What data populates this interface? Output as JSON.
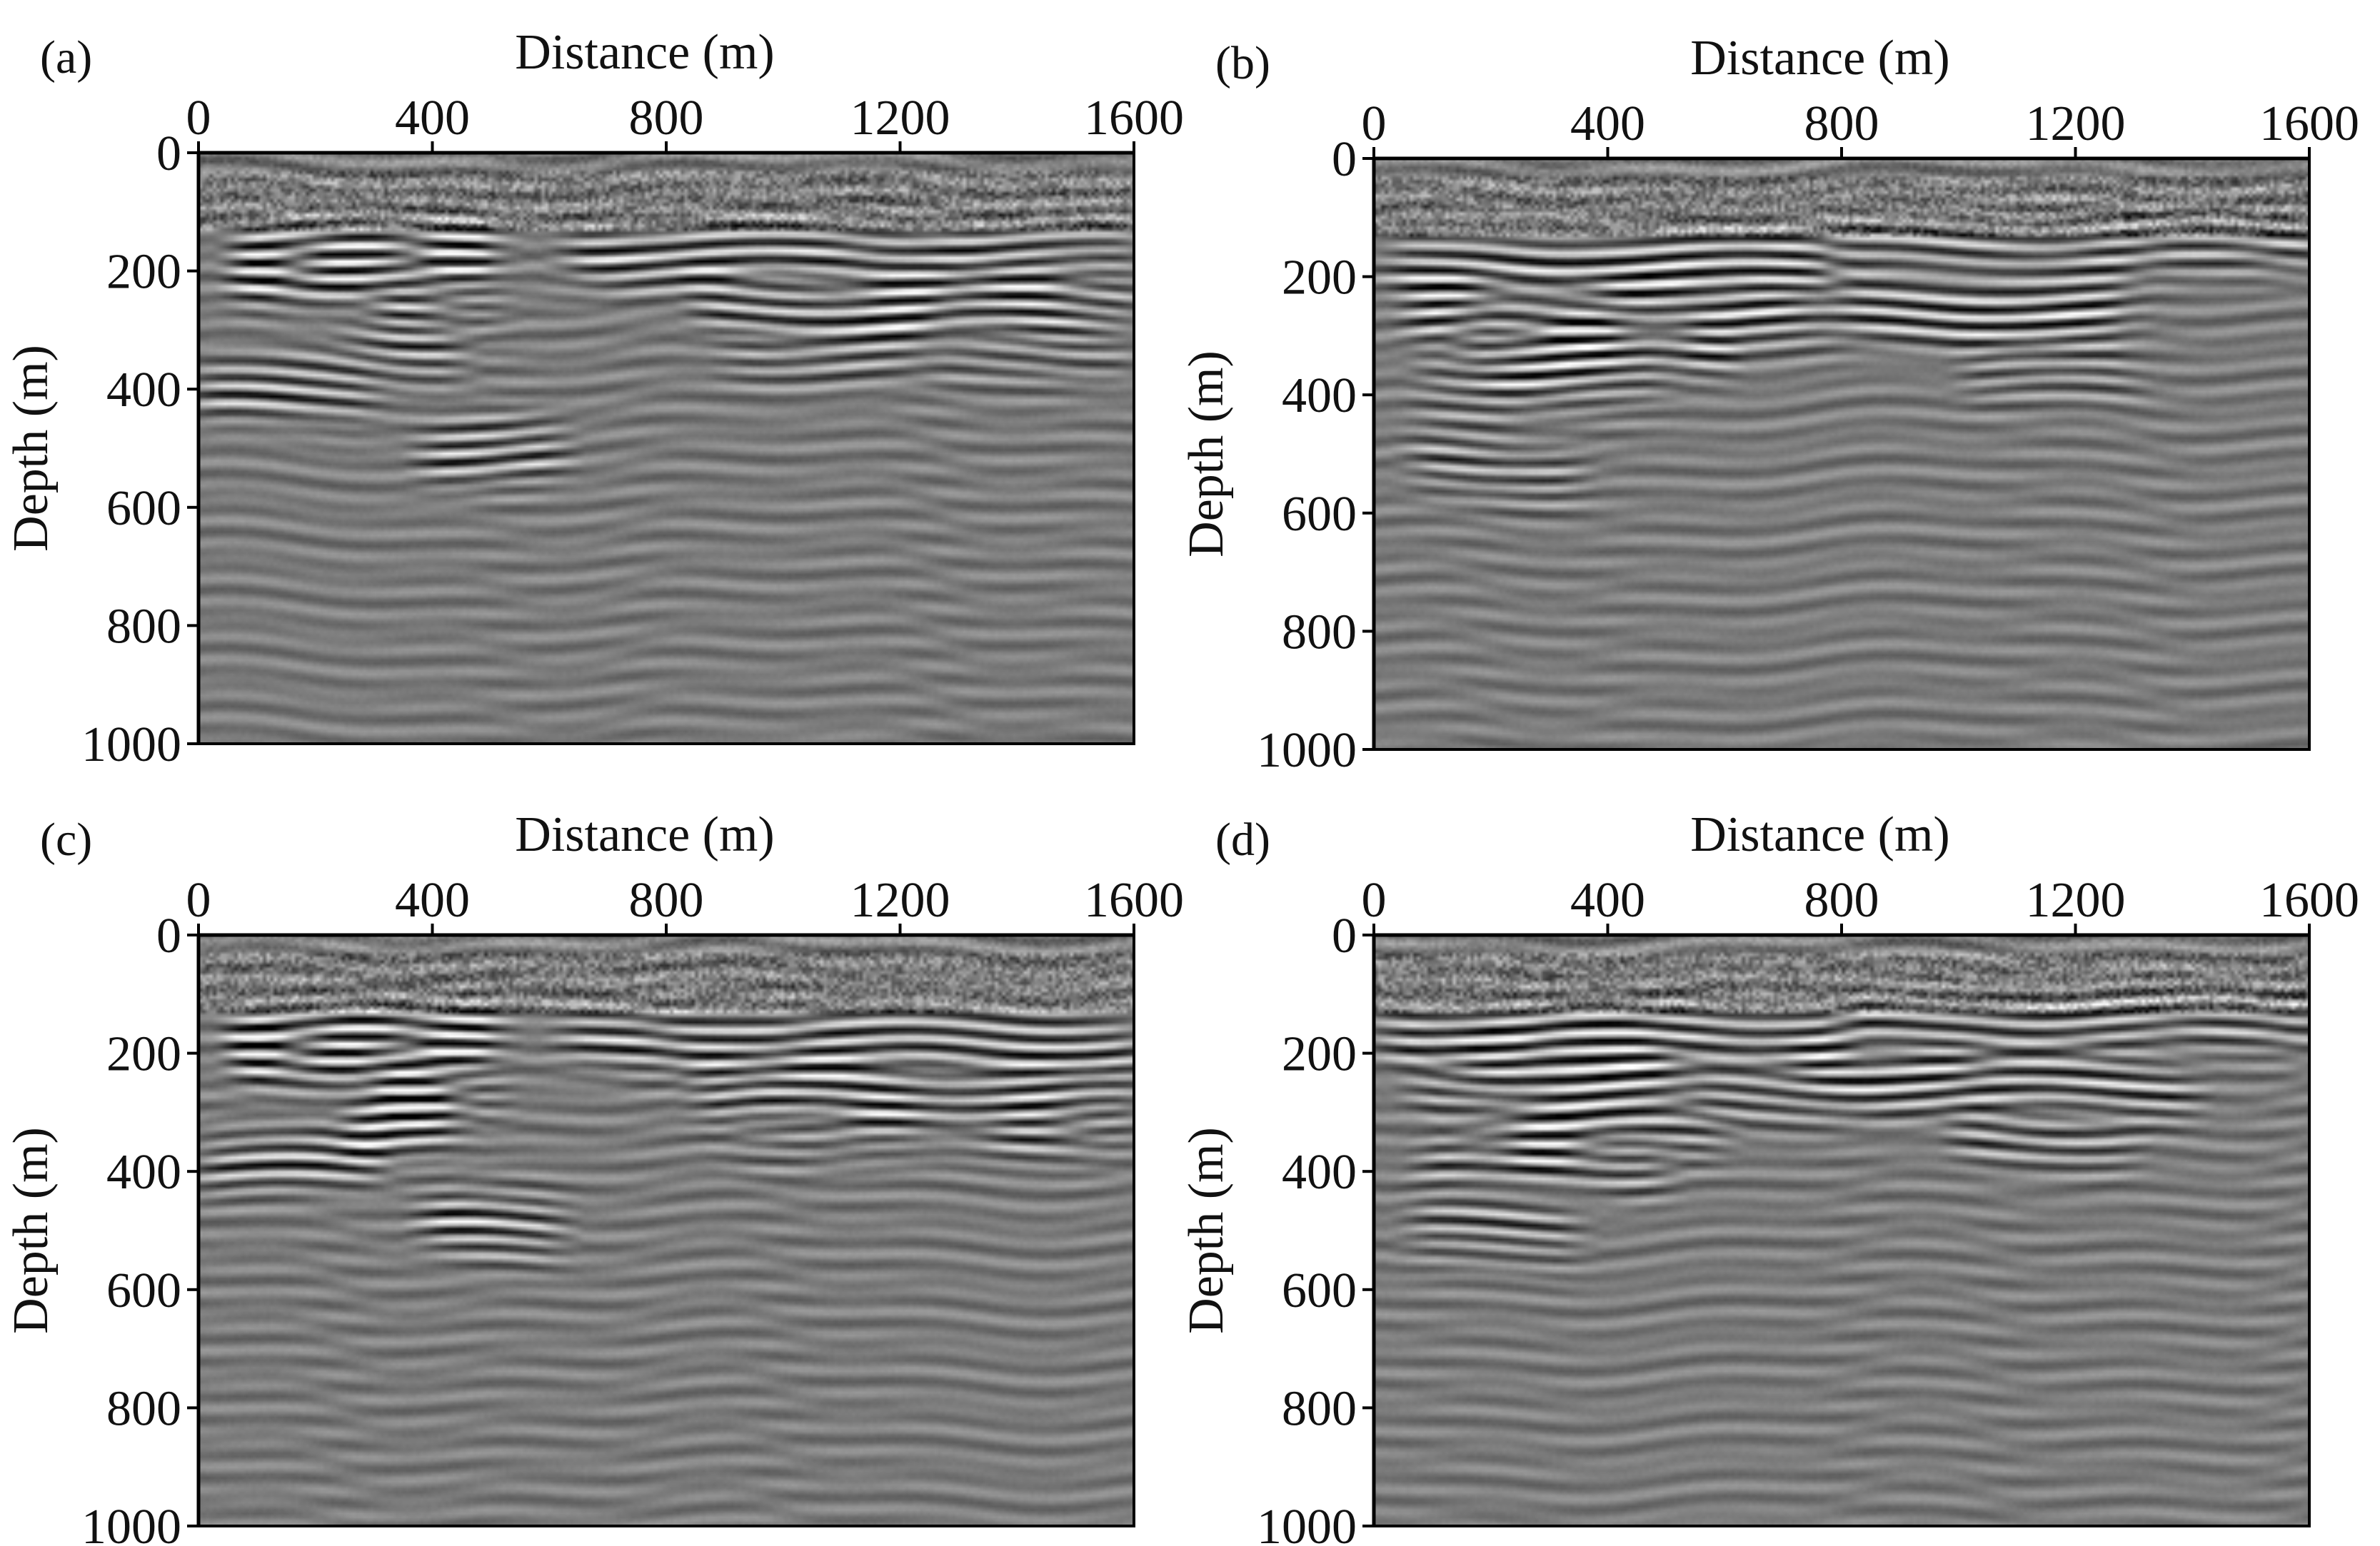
{
  "figure": {
    "description_free": true,
    "colors": {
      "background": "#ffffff",
      "section_mid_gray": "#7b7b7b",
      "peak": "#f4f4f4",
      "trough": "#161616",
      "axis": "#000000"
    }
  },
  "chart_data": [
    {
      "type": "heatmap",
      "panel_label": "(a)",
      "title": "",
      "xlabel": "Distance (m)",
      "ylabel": "Depth (m)",
      "xlim": [
        0,
        1600
      ],
      "ylim": [
        0,
        1000
      ],
      "x_ticks": [
        "0",
        "400",
        "800",
        "1200",
        "1600"
      ],
      "y_ticks": [
        "0",
        "200",
        "400",
        "600",
        "800",
        "1000"
      ],
      "colormap": "gray (seismic amplitude)",
      "reflectors": [
        {
          "x_start": 60,
          "x_end": 520,
          "depth": 165,
          "strength": 1.0
        },
        {
          "x_start": 60,
          "x_end": 520,
          "depth": 200,
          "strength": 0.9
        },
        {
          "x_start": 300,
          "x_end": 520,
          "depth": 260,
          "strength": 0.8
        },
        {
          "x_start": 250,
          "x_end": 450,
          "depth": 330,
          "strength": 0.9
        },
        {
          "x_start": 0,
          "x_end": 300,
          "depth": 400,
          "strength": 0.8
        },
        {
          "x_start": 380,
          "x_end": 620,
          "depth": 500,
          "strength": 0.9
        },
        {
          "x_start": 620,
          "x_end": 1600,
          "depth": 170,
          "strength": 0.85
        },
        {
          "x_start": 850,
          "x_end": 1600,
          "depth": 260,
          "strength": 0.95
        },
        {
          "x_start": 900,
          "x_end": 1600,
          "depth": 330,
          "strength": 0.6
        }
      ]
    },
    {
      "type": "heatmap",
      "panel_label": "(b)",
      "title": "",
      "xlabel": "Distance (m)",
      "ylabel": "Depth (m)",
      "xlim": [
        0,
        1600
      ],
      "ylim": [
        0,
        1000
      ],
      "x_ticks": [
        "0",
        "400",
        "800",
        "1200",
        "1600"
      ],
      "y_ticks": [
        "0",
        "200",
        "400",
        "600",
        "800",
        "1000"
      ],
      "colormap": "gray (seismic amplitude)",
      "reflectors": [
        {
          "x_start": 20,
          "x_end": 800,
          "depth": 180,
          "strength": 0.95
        },
        {
          "x_start": 800,
          "x_end": 1600,
          "depth": 140,
          "strength": 0.7
        },
        {
          "x_start": 60,
          "x_end": 1300,
          "depth": 260,
          "strength": 0.9
        },
        {
          "x_start": 150,
          "x_end": 600,
          "depth": 320,
          "strength": 0.85
        },
        {
          "x_start": 80,
          "x_end": 500,
          "depth": 370,
          "strength": 0.7
        },
        {
          "x_start": 1000,
          "x_end": 1300,
          "depth": 350,
          "strength": 0.6
        },
        {
          "x_start": 60,
          "x_end": 350,
          "depth": 520,
          "strength": 0.7
        }
      ]
    },
    {
      "type": "heatmap",
      "panel_label": "(c)",
      "title": "",
      "xlabel": "Distance (m)",
      "ylabel": "Depth (m)",
      "xlim": [
        0,
        1600
      ],
      "ylim": [
        0,
        1000
      ],
      "x_ticks": [
        "0",
        "400",
        "800",
        "1200",
        "1600"
      ],
      "y_ticks": [
        "0",
        "200",
        "400",
        "600",
        "800",
        "1000"
      ],
      "colormap": "gray (seismic amplitude)",
      "reflectors": [
        {
          "x_start": 60,
          "x_end": 520,
          "depth": 165,
          "strength": 1.0
        },
        {
          "x_start": 60,
          "x_end": 520,
          "depth": 200,
          "strength": 0.9
        },
        {
          "x_start": 300,
          "x_end": 520,
          "depth": 260,
          "strength": 0.85
        },
        {
          "x_start": 250,
          "x_end": 450,
          "depth": 320,
          "strength": 1.0
        },
        {
          "x_start": 0,
          "x_end": 300,
          "depth": 380,
          "strength": 0.85
        },
        {
          "x_start": 380,
          "x_end": 620,
          "depth": 490,
          "strength": 0.95
        },
        {
          "x_start": 620,
          "x_end": 1600,
          "depth": 180,
          "strength": 0.8
        },
        {
          "x_start": 850,
          "x_end": 1600,
          "depth": 270,
          "strength": 0.9
        },
        {
          "x_start": 900,
          "x_end": 1600,
          "depth": 330,
          "strength": 0.5
        }
      ]
    },
    {
      "type": "heatmap",
      "panel_label": "(d)",
      "title": "",
      "xlabel": "Distance (m)",
      "ylabel": "Depth (m)",
      "xlim": [
        0,
        1600
      ],
      "ylim": [
        0,
        1000
      ],
      "x_ticks": [
        "0",
        "400",
        "800",
        "1200",
        "1600"
      ],
      "y_ticks": [
        "0",
        "200",
        "400",
        "600",
        "800",
        "1000"
      ],
      "colormap": "gray (seismic amplitude)",
      "reflectors": [
        {
          "x_start": 20,
          "x_end": 800,
          "depth": 170,
          "strength": 1.0
        },
        {
          "x_start": 800,
          "x_end": 1600,
          "depth": 140,
          "strength": 0.75
        },
        {
          "x_start": 60,
          "x_end": 1400,
          "depth": 250,
          "strength": 0.9
        },
        {
          "x_start": 150,
          "x_end": 600,
          "depth": 320,
          "strength": 0.9
        },
        {
          "x_start": 80,
          "x_end": 500,
          "depth": 380,
          "strength": 0.7
        },
        {
          "x_start": 1000,
          "x_end": 1300,
          "depth": 340,
          "strength": 0.65
        },
        {
          "x_start": 60,
          "x_end": 350,
          "depth": 500,
          "strength": 0.8
        }
      ]
    }
  ]
}
